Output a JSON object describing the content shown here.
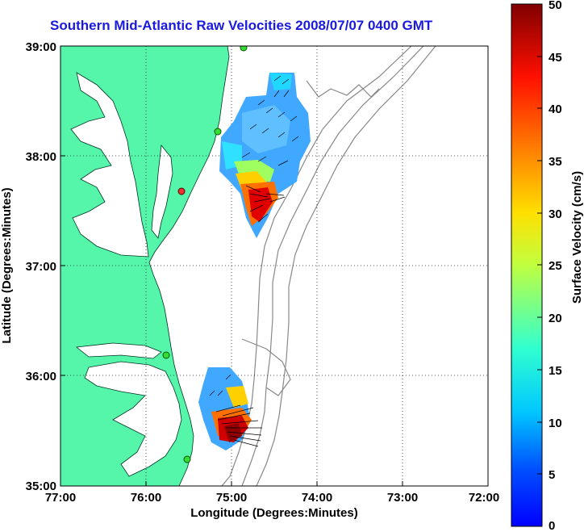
{
  "title": "Southern Mid-Atlantic Raw Velocities 2008/07/07 0400 GMT",
  "axes": {
    "xlabel": "Longitude (Degrees:Minutes)",
    "ylabel": "Latitude (Degrees:Minutes)",
    "xticks": [
      "77:00",
      "76:00",
      "75:00",
      "74:00",
      "73:00",
      "72:00"
    ],
    "yticks": [
      "39:00",
      "38:00",
      "37:00",
      "36:00",
      "35:00"
    ],
    "xlim": [
      -77,
      -72
    ],
    "ylim": [
      35,
      39
    ],
    "grid": "dotted"
  },
  "colorbar": {
    "label": "Surface Velocity (cm/s)",
    "ticks": [
      "0",
      "5",
      "10",
      "15",
      "20",
      "25",
      "30",
      "35",
      "40",
      "45",
      "50"
    ],
    "range": [
      0,
      50
    ],
    "colormap": "jet"
  },
  "colors": {
    "land": "#55f5aa",
    "water": "#ffffff",
    "title": "#1a1adf",
    "bathymetry": "#888888",
    "station_active": "#33dd33",
    "station_inactive": "#ee3333"
  },
  "stations": [
    {
      "lon": -75.1,
      "lat": 39.0,
      "status": "active"
    },
    {
      "lon": -75.4,
      "lat": 38.2,
      "status": "active"
    },
    {
      "lon": -75.55,
      "lat": 37.7,
      "status": "inactive"
    },
    {
      "lon": -75.65,
      "lat": 36.2,
      "status": "active"
    },
    {
      "lon": -75.5,
      "lat": 35.25,
      "status": "active"
    }
  ]
}
